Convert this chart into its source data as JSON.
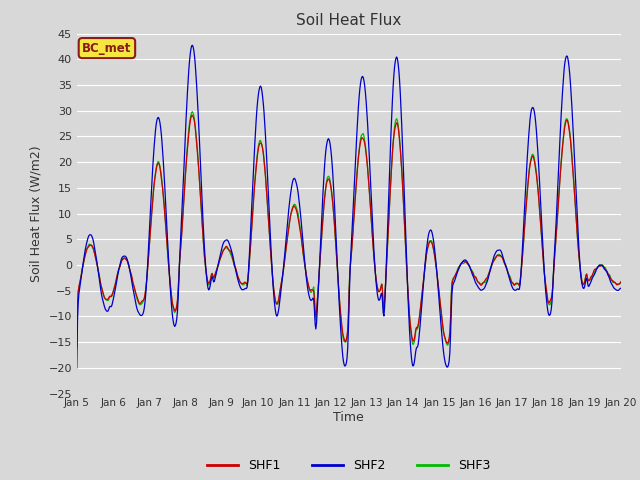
{
  "title": "Soil Heat Flux",
  "xlabel": "Time",
  "ylabel": "Soil Heat Flux (W/m2)",
  "ylim": [
    -25,
    45
  ],
  "yticks": [
    -25,
    -20,
    -15,
    -10,
    -5,
    0,
    5,
    10,
    15,
    20,
    25,
    30,
    35,
    40,
    45
  ],
  "background_color": "#d8d8d8",
  "plot_bg_color": "#d8d8d8",
  "grid_color": "#ffffff",
  "annotation_text": "BC_met",
  "annotation_bg": "#f5e642",
  "annotation_border": "#8b1a1a",
  "line_colors": {
    "SHF1": "#cc0000",
    "SHF2": "#0000cc",
    "SHF3": "#00bb00"
  },
  "x_start": 5,
  "x_end": 20,
  "xtick_positions": [
    5,
    6,
    7,
    8,
    9,
    10,
    11,
    12,
    13,
    14,
    15,
    16,
    17,
    18,
    19,
    20
  ],
  "xtick_labels": [
    "Jan 5",
    "Jan 6",
    "Jan 7",
    "Jan 8",
    "Jan 9",
    "Jan 10",
    "Jan 11",
    "Jan 12",
    "Jan 13",
    "Jan 14",
    "Jan 15",
    "Jan 16",
    "Jan 17",
    "Jan 18",
    "Jan 19",
    "Jan 20"
  ],
  "shf2_peaks": {
    "5": 6,
    "6": 2,
    "7": 29,
    "8": 43,
    "9": 5,
    "10": 35,
    "11": 17,
    "12": 25,
    "13": 37,
    "14": 41,
    "15": 7,
    "16": 1,
    "17": 3,
    "18": 31,
    "19": 41,
    "20": 0
  },
  "shf2_troughs": {
    "5": -9,
    "6": -10,
    "7": -12,
    "8": -5,
    "9": -5,
    "10": -10,
    "11": -7,
    "12": -20,
    "13": -7,
    "14": -20,
    "15": -20,
    "16": -5,
    "17": -5,
    "18": -10,
    "19": -5,
    "20": -5
  },
  "shf13_scale": 0.68,
  "n_per_day": 48
}
